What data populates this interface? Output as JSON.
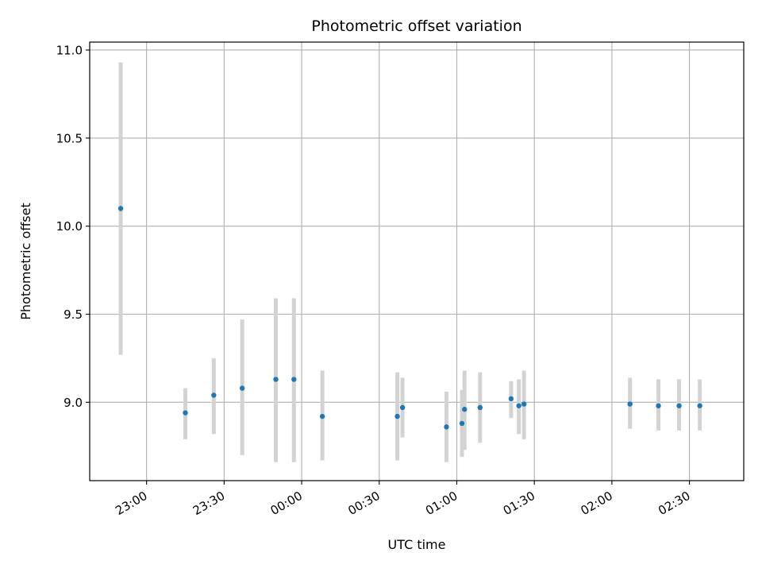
{
  "chart_data": {
    "type": "scatter",
    "title": "Photometric offset variation",
    "xlabel": "UTC time",
    "ylabel": "Photometric offset",
    "ylim": [
      8.555,
      11.045
    ],
    "xlim": [
      "22:38",
      "02:51"
    ],
    "x_ticks": [
      "23:00",
      "23:30",
      "00:00",
      "00:30",
      "01:00",
      "01:30",
      "02:00",
      "02:30"
    ],
    "y_ticks": [
      "9.0",
      "9.5",
      "10.0",
      "10.5",
      "11.0"
    ],
    "grid": true,
    "legend": "none",
    "colors": {
      "marker": "#1f77b4",
      "errorbar": "#d3d3d3",
      "grid": "#b0b0b0",
      "axes": "#000000"
    },
    "series": [
      {
        "points": [
          {
            "x": "22:50",
            "y": 10.1,
            "low": 9.27,
            "high": 10.93
          },
          {
            "x": "23:15",
            "y": 8.94,
            "low": 8.79,
            "high": 9.08
          },
          {
            "x": "23:26",
            "y": 9.04,
            "low": 8.82,
            "high": 9.25
          },
          {
            "x": "23:37",
            "y": 9.08,
            "low": 8.7,
            "high": 9.47
          },
          {
            "x": "23:50",
            "y": 9.13,
            "low": 8.66,
            "high": 9.59
          },
          {
            "x": "23:57",
            "y": 9.13,
            "low": 8.66,
            "high": 9.59
          },
          {
            "x": "00:08",
            "y": 8.92,
            "low": 8.67,
            "high": 9.18
          },
          {
            "x": "00:37",
            "y": 8.92,
            "low": 8.67,
            "high": 9.17
          },
          {
            "x": "00:39",
            "y": 8.97,
            "low": 8.8,
            "high": 9.14
          },
          {
            "x": "00:56",
            "y": 8.86,
            "low": 8.66,
            "high": 9.06
          },
          {
            "x": "01:02",
            "y": 8.88,
            "low": 8.69,
            "high": 9.07
          },
          {
            "x": "01:03",
            "y": 8.96,
            "low": 8.73,
            "high": 9.18
          },
          {
            "x": "01:09",
            "y": 8.97,
            "low": 8.77,
            "high": 9.17
          },
          {
            "x": "01:21",
            "y": 9.02,
            "low": 8.91,
            "high": 9.12
          },
          {
            "x": "01:24",
            "y": 8.98,
            "low": 8.82,
            "high": 9.13
          },
          {
            "x": "01:26",
            "y": 8.99,
            "low": 8.79,
            "high": 9.18
          },
          {
            "x": "02:07",
            "y": 8.99,
            "low": 8.85,
            "high": 9.14
          },
          {
            "x": "02:18",
            "y": 8.98,
            "low": 8.84,
            "high": 9.13
          },
          {
            "x": "02:26",
            "y": 8.98,
            "low": 8.84,
            "high": 9.13
          },
          {
            "x": "02:34",
            "y": 8.98,
            "low": 8.84,
            "high": 9.13
          }
        ]
      }
    ]
  }
}
